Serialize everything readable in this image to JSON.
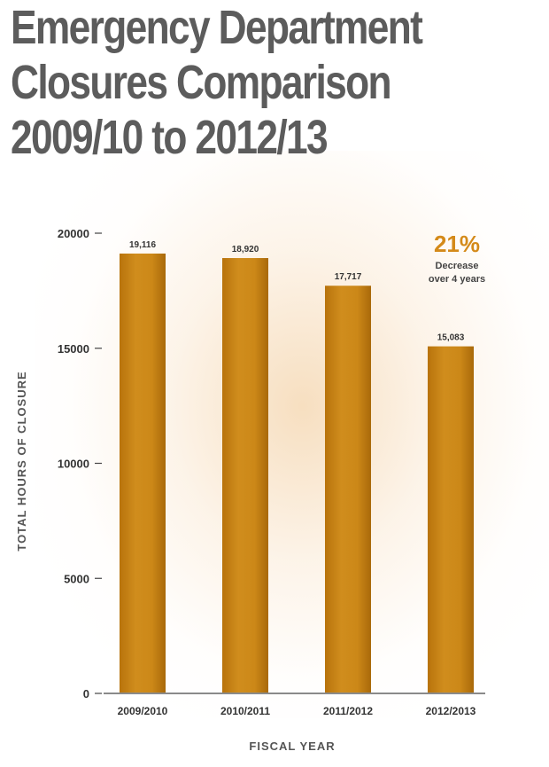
{
  "chart_data": {
    "type": "bar",
    "title_lines": [
      "Emergency Department",
      "Closures Comparison",
      "2009/10 to 2012/13"
    ],
    "xlabel": "FISCAL YEAR",
    "ylabel": "TOTAL HOURS OF CLOSURE",
    "categories": [
      "2009/2010",
      "2010/2011",
      "2011/2012",
      "2012/2013"
    ],
    "values": [
      19116,
      18920,
      17717,
      15083
    ],
    "value_labels": [
      "19,116",
      "18,920",
      "17,717",
      "15,083"
    ],
    "ylim": [
      0,
      20000
    ],
    "yticks": [
      0,
      5000,
      10000,
      15000,
      20000
    ],
    "ytick_labels": [
      "0",
      "5000",
      "10000",
      "15000",
      "20000"
    ],
    "grid": false,
    "bar_color": "#c98415",
    "annotation": {
      "percent": "21%",
      "line1": "Decrease",
      "line2": "over 4 years",
      "color": "#d48a19"
    }
  }
}
